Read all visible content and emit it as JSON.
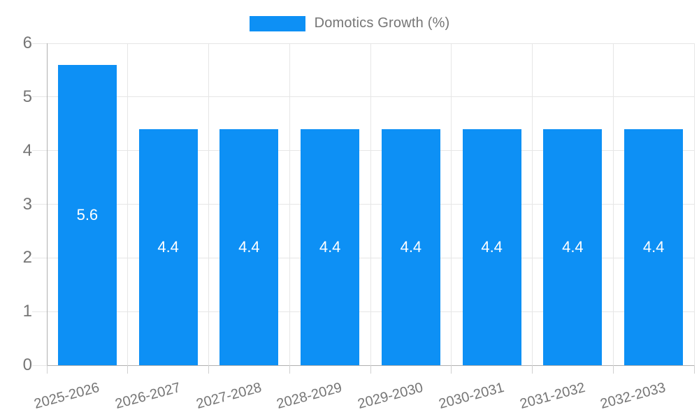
{
  "chart_data": {
    "type": "bar",
    "title": "Domotics Growth (%)",
    "legend": {
      "label": "Domotics Growth (%)",
      "position": "top-center"
    },
    "categories": [
      "2025-2026",
      "2026-2027",
      "2027-2028",
      "2028-2029",
      "2029-2030",
      "2030-2031",
      "2031-2032",
      "2032-2033"
    ],
    "values": [
      5.6,
      4.4,
      4.4,
      4.4,
      4.4,
      4.4,
      4.4,
      4.4
    ],
    "value_labels": [
      "5.6",
      "4.4",
      "4.4",
      "4.4",
      "4.4",
      "4.4",
      "4.4",
      "4.4"
    ],
    "xlabel": "",
    "ylabel": "",
    "ylim": [
      0,
      6
    ],
    "yticks": [
      0,
      1,
      2,
      3,
      4,
      5,
      6
    ],
    "grid": true,
    "x_label_rotation_deg": -15,
    "colors": {
      "bar": "#0d90f5",
      "bar_label": "#ffffff",
      "grid": "#e6e6e6",
      "axis": "#b0b0b0",
      "tick": "#d0d0d0",
      "text": "#757575",
      "background": "#ffffff"
    }
  }
}
